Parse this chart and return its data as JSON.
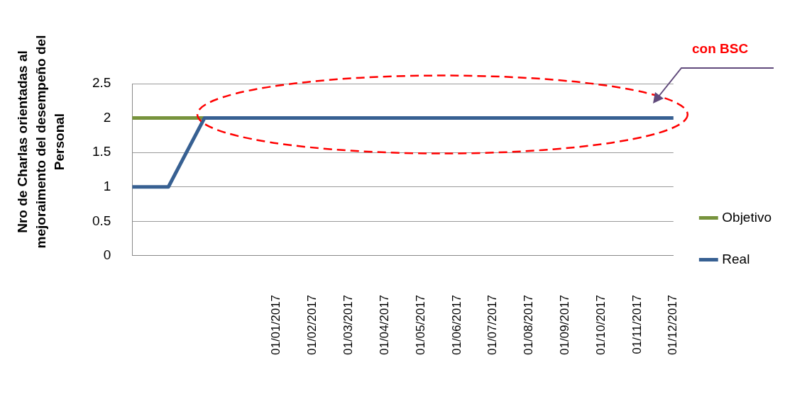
{
  "chart_data": {
    "type": "line",
    "ylabel": "Nro de Charlas orientadas al mejoraimento del desempeño del Personal",
    "categories": [
      null,
      null,
      null,
      null,
      "01/01/2017",
      "01/02/2017",
      "01/03/2017",
      "01/04/2017",
      "01/05/2017",
      "01/06/2017",
      "01/07/2017",
      "01/08/2017",
      "01/09/2017",
      "01/10/2017",
      "01/11/2017",
      "01/12/2017"
    ],
    "series": [
      {
        "name": "Objetivo",
        "color": "#77933c",
        "values": [
          2,
          2,
          2,
          null,
          null,
          null,
          null,
          null,
          null,
          null,
          null,
          null,
          null,
          null,
          null,
          null
        ]
      },
      {
        "name": "Real",
        "color": "#376092",
        "values": [
          1,
          1,
          2,
          2,
          2,
          2,
          2,
          2,
          2,
          2,
          2,
          2,
          2,
          2,
          2,
          2
        ]
      }
    ],
    "ylim": [
      0,
      2.5
    ],
    "yticks": [
      0,
      0.5,
      1,
      1.5,
      2,
      2.5
    ],
    "grid": "y",
    "legend": "right",
    "marker": "none",
    "line_style": "solid",
    "annotations": [
      "con BSC"
    ]
  }
}
